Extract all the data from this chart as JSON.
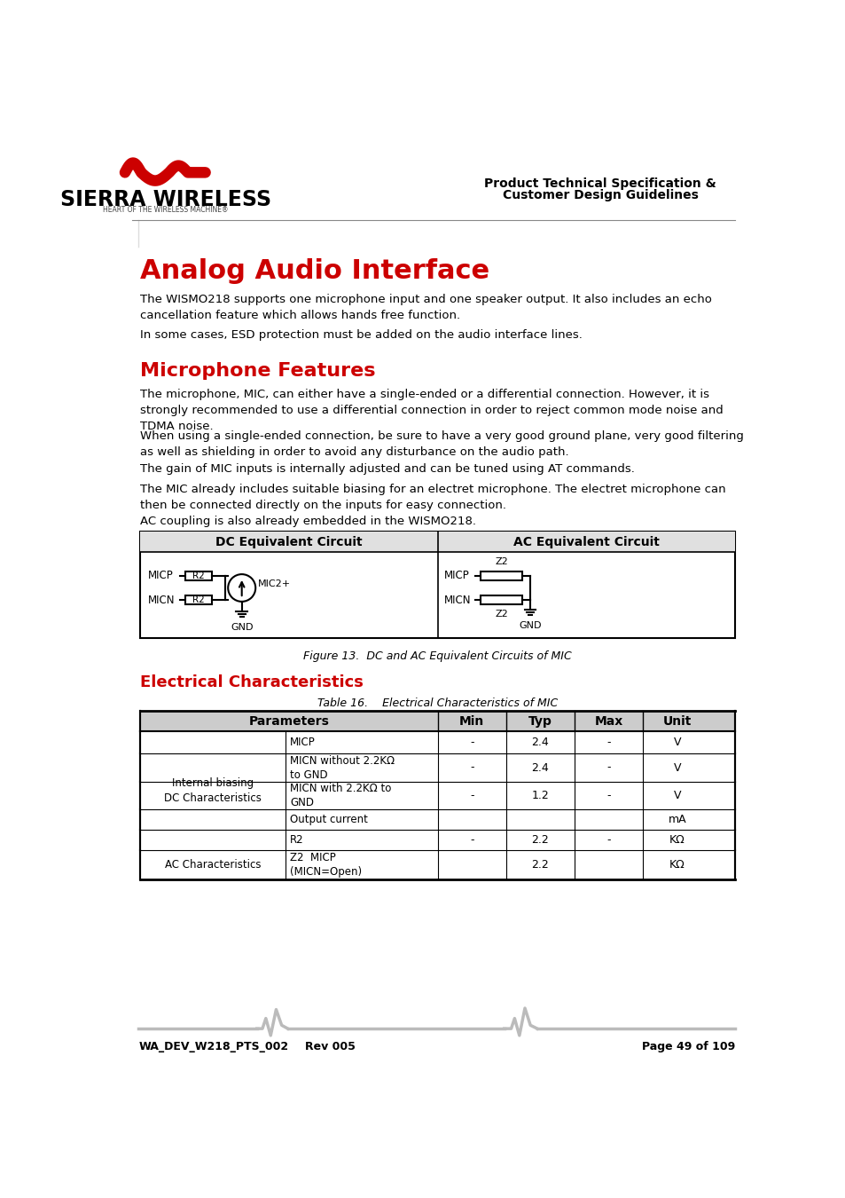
{
  "page_bg": "#ffffff",
  "header_line_color": "#cccccc",
  "red_color": "#cc0000",
  "black": "#000000",
  "gray": "#888888",
  "light_gray": "#dddddd",
  "dark_gray": "#444444",
  "title1": "Analog Audio Interface",
  "title2": "Microphone Features",
  "title3": "Electrical Characteristics",
  "header_right1": "Product Technical Specification &",
  "header_right2": "Customer Design Guidelines",
  "body1": "The WISMO218 supports one microphone input and one speaker output. It also includes an echo\ncancellation feature which allows hands free function.",
  "body2": "In some cases, ESD protection must be added on the audio interface lines.",
  "body3": "The microphone, MIC, can either have a single-ended or a differential connection. However, it is\nstrongly recommended to use a differential connection in order to reject common mode noise and\nTDMA noise.",
  "body4": "When using a single-ended connection, be sure to have a very good ground plane, very good filtering\nas well as shielding in order to avoid any disturbance on the audio path.",
  "body5": "The gain of MIC inputs is internally adjusted and can be tuned using AT commands.",
  "body6": "The MIC already includes suitable biasing for an electret microphone. The electret microphone can\nthen be connected directly on the inputs for easy connection.",
  "body7": "AC coupling is also already embedded in the WISMO218.",
  "fig_caption": "Figure 13.  DC and AC Equivalent Circuits of MIC",
  "table_caption": "Table 16.    Electrical Characteristics of MIC",
  "footer_left": "WA_DEV_W218_PTS_002",
  "footer_mid": "Rev 005",
  "footer_right": "Page 49 of 109",
  "table_headers": [
    "Parameters",
    "Min",
    "Typ",
    "Max",
    "Unit"
  ],
  "table_rows": [
    [
      "Internal biasing\nDC Characteristics",
      "MICP",
      "-",
      "2.4",
      "-",
      "V"
    ],
    [
      "",
      "MICN without 2.2KΩ\nto GND",
      "-",
      "2.4",
      "-",
      "V"
    ],
    [
      "",
      "MICN with 2.2KΩ to\nGND",
      "-",
      "1.2",
      "-",
      "V"
    ],
    [
      "",
      "Output current",
      "",
      "",
      "",
      "mA"
    ],
    [
      "",
      "R2",
      "-",
      "2.2",
      "-",
      "KΩ"
    ],
    [
      "AC Characteristics",
      "Z2  MICP\n(MICN=Open)",
      "",
      "2.2",
      "",
      "KΩ"
    ]
  ]
}
